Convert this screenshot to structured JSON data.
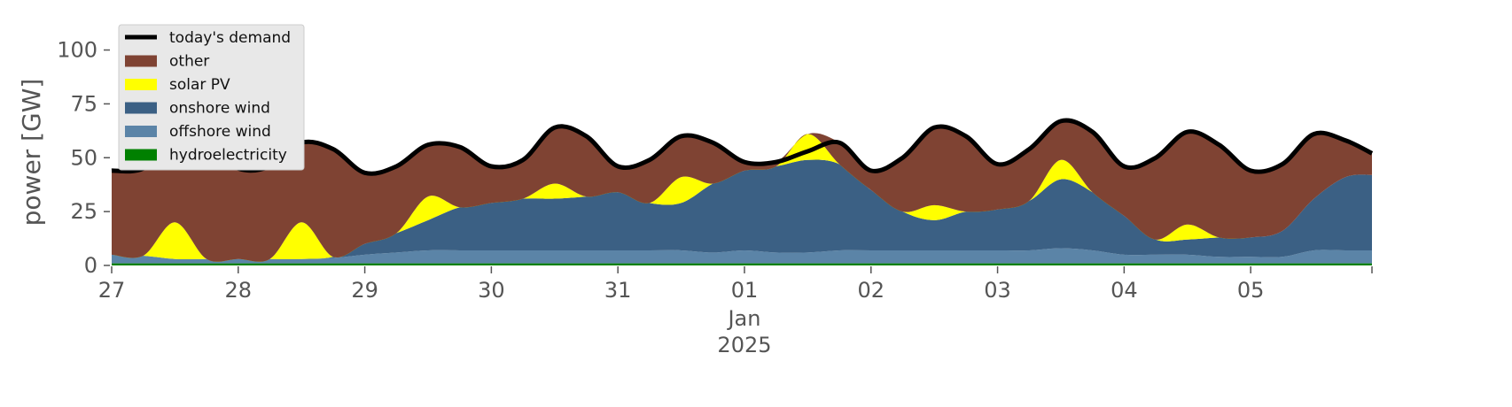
{
  "chart_data": {
    "type": "area",
    "title": "",
    "xlabel": "",
    "ylabel": "power [GW]",
    "ylim": [
      0,
      115
    ],
    "xlim": [
      "2024-12-27T00:00",
      "2025-01-05T23:00"
    ],
    "grid": false,
    "legend_position": "top-left",
    "x_ticks": [
      {
        "date": "2024-12-27",
        "label": "27"
      },
      {
        "date": "2024-12-28",
        "label": "28"
      },
      {
        "date": "2024-12-29",
        "label": "29"
      },
      {
        "date": "2024-12-30",
        "label": "30"
      },
      {
        "date": "2024-12-31",
        "label": "31"
      },
      {
        "date": "2025-01-01",
        "label": "01",
        "sub": [
          "Jan",
          "2025"
        ]
      },
      {
        "date": "2025-01-02",
        "label": "02"
      },
      {
        "date": "2025-01-03",
        "label": "03"
      },
      {
        "date": "2025-01-04",
        "label": "04"
      },
      {
        "date": "2025-01-05",
        "label": "05"
      }
    ],
    "y_ticks": [
      0,
      25,
      50,
      75,
      100
    ],
    "x": [
      "2024-12-27T00:00",
      "2024-12-27T06:00",
      "2024-12-27T12:00",
      "2024-12-27T18:00",
      "2024-12-28T00:00",
      "2024-12-28T06:00",
      "2024-12-28T12:00",
      "2024-12-28T18:00",
      "2024-12-29T00:00",
      "2024-12-29T06:00",
      "2024-12-29T12:00",
      "2024-12-29T18:00",
      "2024-12-30T00:00",
      "2024-12-30T06:00",
      "2024-12-30T12:00",
      "2024-12-30T18:00",
      "2024-12-31T00:00",
      "2024-12-31T06:00",
      "2024-12-31T12:00",
      "2024-12-31T18:00",
      "2025-01-01T00:00",
      "2025-01-01T06:00",
      "2025-01-01T12:00",
      "2025-01-01T18:00",
      "2025-01-02T00:00",
      "2025-01-02T06:00",
      "2025-01-02T12:00",
      "2025-01-02T18:00",
      "2025-01-03T00:00",
      "2025-01-03T06:00",
      "2025-01-03T12:00",
      "2025-01-03T18:00",
      "2025-01-04T00:00",
      "2025-01-04T06:00",
      "2025-01-04T12:00",
      "2025-01-04T18:00",
      "2025-01-05T00:00",
      "2025-01-05T06:00",
      "2025-01-05T12:00",
      "2025-01-05T18:00",
      "2025-01-05T23:00"
    ],
    "demand": {
      "name": "today's demand",
      "color": "#000000",
      "values": [
        44,
        45,
        58,
        56,
        45,
        46,
        57,
        54,
        43,
        46,
        56,
        55,
        46,
        49,
        64,
        60,
        46,
        49,
        60,
        57,
        48,
        48,
        53,
        57,
        44,
        50,
        64,
        60,
        47,
        54,
        67,
        62,
        46,
        50,
        62,
        56,
        44,
        47,
        61,
        58,
        52
      ]
    },
    "series": [
      {
        "name": "hydroelectricity",
        "color": "#008000",
        "values": [
          1,
          1,
          1,
          1,
          1,
          1,
          1,
          1,
          1,
          1,
          1,
          1,
          1,
          1,
          1,
          1,
          1,
          1,
          1,
          1,
          1,
          1,
          1,
          1,
          1,
          1,
          1,
          1,
          1,
          1,
          1,
          1,
          1,
          1,
          1,
          1,
          1,
          1,
          1,
          1,
          1
        ]
      },
      {
        "name": "offshore wind",
        "color": "#5b84a7",
        "values": [
          4,
          3.5,
          2,
          2,
          2,
          2,
          2,
          2.5,
          4,
          5,
          6,
          6,
          6,
          6,
          6,
          6,
          6,
          6,
          6,
          5,
          6,
          5,
          5,
          6,
          6,
          6,
          6,
          6,
          6,
          6,
          7,
          6,
          4,
          4,
          4,
          3,
          3,
          3,
          6,
          6,
          6
        ]
      },
      {
        "name": "onshore wind",
        "color": "#3b6084",
        "values": [
          0,
          0,
          0,
          0,
          0,
          0,
          0,
          0.5,
          5,
          9,
          14,
          20,
          22,
          24,
          24,
          25,
          27,
          22,
          22,
          32,
          37,
          40,
          43,
          40,
          28,
          18,
          14,
          18,
          19,
          23,
          32,
          27,
          18,
          7,
          7,
          9,
          9,
          12,
          24,
          34,
          35
        ]
      },
      {
        "name": "solar PV",
        "color": "#ffff00",
        "values": [
          0,
          0,
          17,
          0,
          0,
          0,
          17,
          0,
          0,
          0,
          11,
          0,
          0,
          0,
          7,
          0,
          0,
          0,
          12,
          0,
          0,
          0,
          12,
          0,
          0,
          0,
          7,
          0,
          0,
          0,
          9,
          0,
          0,
          0,
          7,
          0,
          0,
          0,
          0,
          0,
          0
        ]
      },
      {
        "name": "other",
        "color": "#7f4333",
        "values": [
          39,
          40.5,
          38,
          53,
          42,
          43,
          37,
          50.5,
          33,
          31,
          24,
          28,
          17,
          18,
          26,
          28,
          12,
          20,
          19,
          19,
          4,
          2,
          0,
          10,
          9,
          25,
          36,
          35,
          21,
          24,
          18,
          28,
          23,
          38,
          43,
          43,
          31,
          31,
          30,
          17,
          10
        ]
      }
    ],
    "legend": [
      "today's demand",
      "other",
      "solar PV",
      "onshore wind",
      "offshore wind",
      "hydroelectricity"
    ]
  }
}
